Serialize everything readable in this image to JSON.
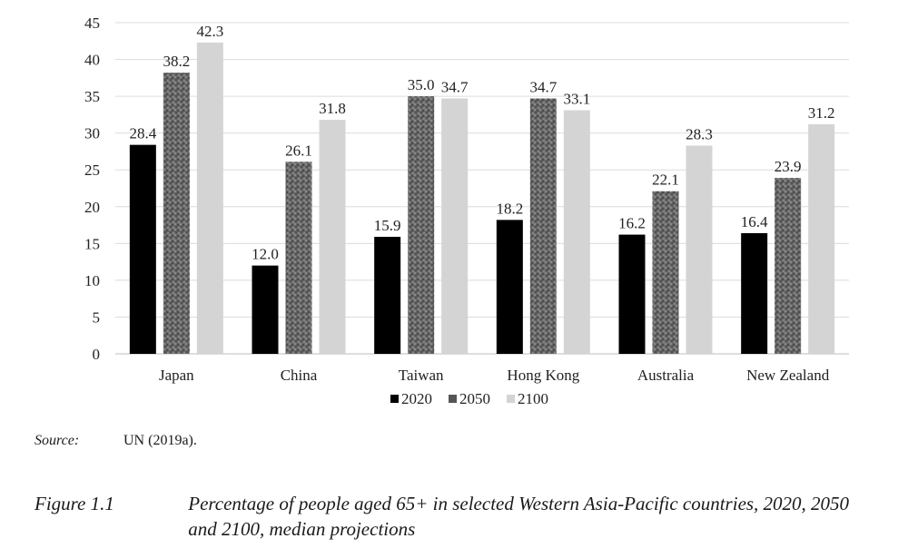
{
  "chart_data": {
    "type": "bar",
    "categories": [
      "Japan",
      "China",
      "Taiwan",
      "Hong Kong",
      "Australia",
      "New Zealand"
    ],
    "series": [
      {
        "name": "2020",
        "values": [
          28.4,
          12.0,
          15.9,
          18.2,
          16.2,
          16.4
        ],
        "color": "#000000",
        "pattern": "solid"
      },
      {
        "name": "2050",
        "values": [
          38.2,
          26.1,
          35.0,
          34.7,
          22.1,
          23.9
        ],
        "color": "#6b6b6b",
        "pattern": "speckled"
      },
      {
        "name": "2100",
        "values": [
          42.3,
          31.8,
          34.7,
          33.1,
          28.3,
          31.2
        ],
        "color": "#d4d4d4",
        "pattern": "solid"
      }
    ],
    "value_labels": [
      [
        "28.4",
        "12.0",
        "15.9",
        "18.2",
        "16.2",
        "16.4"
      ],
      [
        "38.2",
        "26.1",
        "35.0",
        "34.7",
        "22.1",
        "23.9"
      ],
      [
        "42.3",
        "31.8",
        "34.7",
        "33.1",
        "28.3",
        "31.2"
      ]
    ],
    "ylim": [
      0,
      45
    ],
    "yticks": [
      0,
      5,
      10,
      15,
      20,
      25,
      30,
      35,
      40,
      45
    ],
    "grid": true,
    "legend": "bottom",
    "xlabel": "",
    "ylabel": "",
    "title": ""
  },
  "source": {
    "label": "Source:",
    "text": "UN (2019a)."
  },
  "caption": {
    "label": "Figure 1.1",
    "text": "Percentage of people aged 65+ in selected Western Asia-Pacific countries, 2020, 2050 and 2100, median projections"
  }
}
